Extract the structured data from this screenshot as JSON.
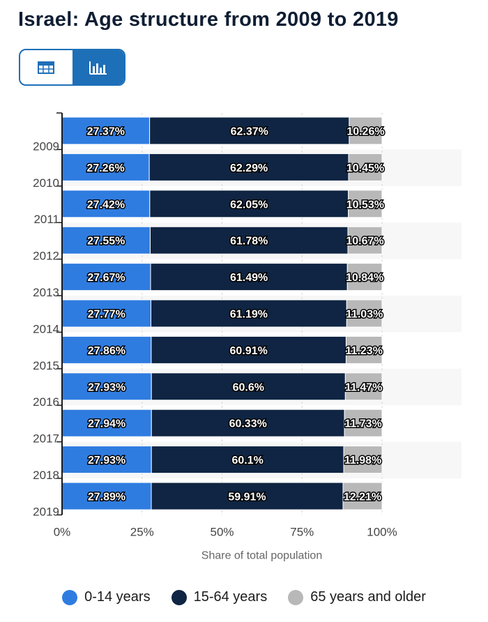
{
  "title": "Israel: Age structure from 2009 to 2019",
  "view_toggle": {
    "table_icon": "table-icon",
    "chart_icon": "bar-chart-icon",
    "active": "chart"
  },
  "colors": {
    "series_0": "#2f7ce0",
    "series_1": "#0f2543",
    "series_2": "#b8b8b8",
    "toggle": "#1d6fb8"
  },
  "chart_data": {
    "type": "bar",
    "orientation": "horizontal",
    "stacked": true,
    "title": "Israel: Age structure from 2009 to 2019",
    "xlabel": "Share of total population",
    "ylabel": "",
    "xlim": [
      0,
      100
    ],
    "x_ticks": [
      "0%",
      "25%",
      "50%",
      "75%",
      "100%"
    ],
    "categories": [
      "2009",
      "2010",
      "2011",
      "2012",
      "2013",
      "2014",
      "2015",
      "2016",
      "2017",
      "2018",
      "2019"
    ],
    "series": [
      {
        "name": "0-14 years",
        "values": [
          27.37,
          27.26,
          27.42,
          27.55,
          27.67,
          27.77,
          27.86,
          27.93,
          27.94,
          27.93,
          27.89
        ],
        "labels": [
          "27.37%",
          "27.26%",
          "27.42%",
          "27.55%",
          "27.67%",
          "27.77%",
          "27.86%",
          "27.93%",
          "27.94%",
          "27.93%",
          "27.89%"
        ]
      },
      {
        "name": "15-64 years",
        "values": [
          62.37,
          62.29,
          62.05,
          61.78,
          61.49,
          61.19,
          60.91,
          60.6,
          60.33,
          60.1,
          59.91
        ],
        "labels": [
          "62.37%",
          "62.29%",
          "62.05%",
          "61.78%",
          "61.49%",
          "61.19%",
          "60.91%",
          "60.6%",
          "60.33%",
          "60.1%",
          "59.91%"
        ]
      },
      {
        "name": "65 years and older",
        "values": [
          10.26,
          10.45,
          10.53,
          10.67,
          10.84,
          11.03,
          11.23,
          11.47,
          11.73,
          11.98,
          12.21
        ],
        "labels": [
          "10.26%",
          "10.45%",
          "10.53%",
          "10.67%",
          "10.84%",
          "11.03%",
          "11.23%",
          "11.47%",
          "11.73%",
          "11.98%",
          "12.21%"
        ]
      }
    ],
    "legend_position": "bottom"
  }
}
